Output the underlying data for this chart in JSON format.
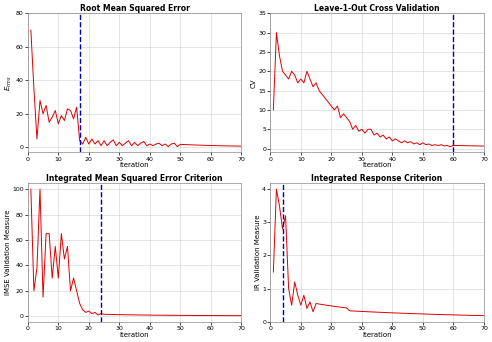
{
  "titles": [
    "Root Mean Squared Error",
    "Leave-1-Out Cross Validation",
    "Integrated Mean Squared Error Criterion",
    "Integrated Response Criterion"
  ],
  "ylabels": [
    "$E_{rms}$",
    "CV",
    "IMSE Validation Measure",
    "IR Validation Measure"
  ],
  "xlabel": "Iteration",
  "xlim": [
    0,
    70
  ],
  "vlines": [
    17,
    60,
    24,
    4
  ],
  "vline_color": "#0000bb",
  "line_color": "#dd0000",
  "background_color": "#ffffff",
  "grid_color": "#d0d0d0",
  "xticks_all": [
    0,
    10,
    20,
    30,
    40,
    50,
    60,
    70
  ],
  "yticks_rmse": [
    0,
    20,
    40,
    60,
    80
  ],
  "yticks_cv": [
    0,
    5,
    10,
    15,
    20,
    25,
    30,
    35
  ],
  "yticks_imse": [
    0,
    20,
    40,
    60,
    80,
    100
  ],
  "yticks_ir": [
    0,
    1,
    2,
    3,
    4
  ],
  "title_fontsize": 5.5,
  "label_fontsize": 5,
  "tick_fontsize": 4.5
}
